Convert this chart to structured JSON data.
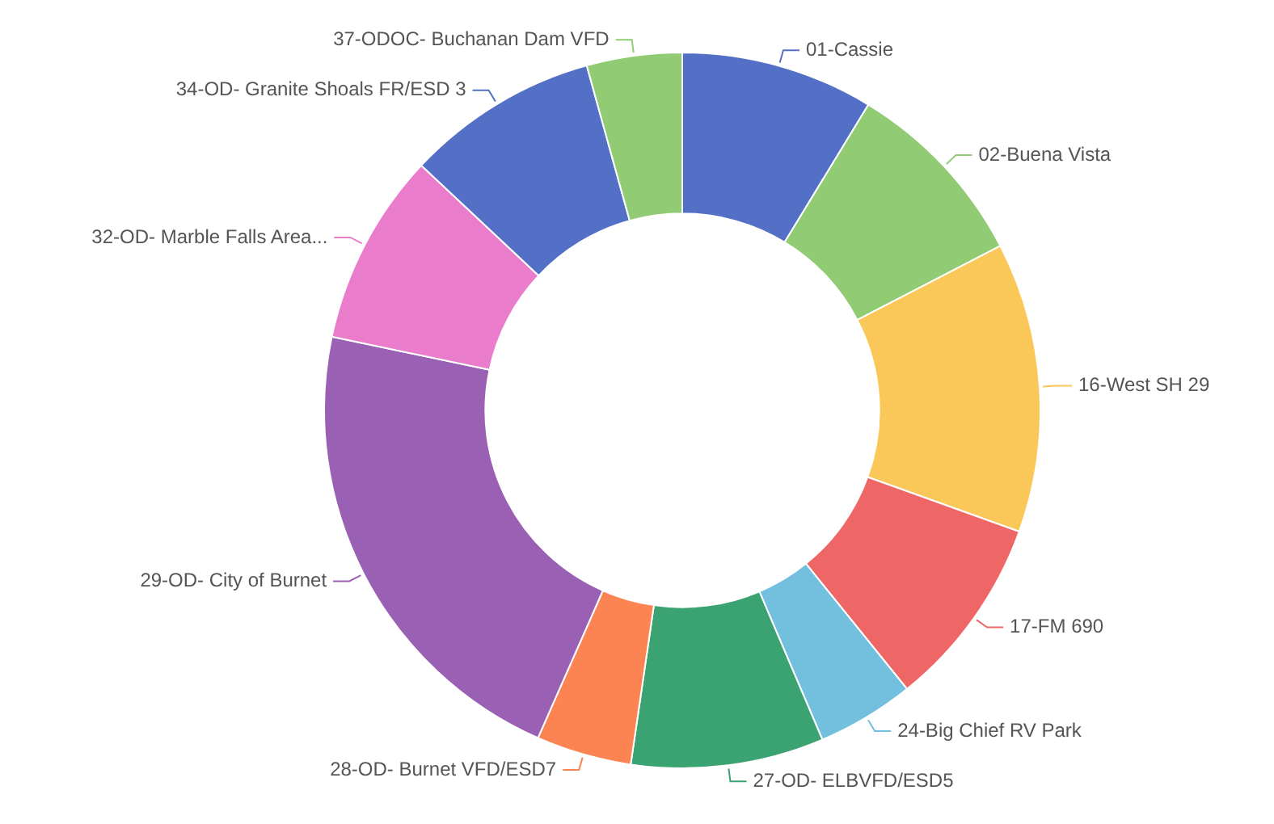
{
  "chart_data": {
    "type": "donut",
    "categories": [
      "01-Cassie",
      "02-Buena Vista",
      "16-West SH 29",
      "17-FM 690",
      "24-Big Chief RV Park",
      "27-OD- ELBVFD/ESD5",
      "28-OD- Burnet VFD/ESD7",
      "29-OD- City of Burnet",
      "32-OD- Marble Falls Area...",
      "34-OD- Granite Shoals FR/ESD 3",
      "37-ODOC- Buchanan Dam VFD"
    ],
    "values": [
      8.7,
      8.7,
      13.1,
      8.7,
      4.4,
      8.7,
      4.3,
      21.7,
      8.7,
      8.7,
      4.3
    ],
    "colors": [
      "#5470c6",
      "#91cc75",
      "#fac858",
      "#ee6666",
      "#73c0de",
      "#3ba272",
      "#fc8452",
      "#9a60b4",
      "#ea7ccc",
      "#5470c6",
      "#91cc75"
    ],
    "legend": false
  }
}
